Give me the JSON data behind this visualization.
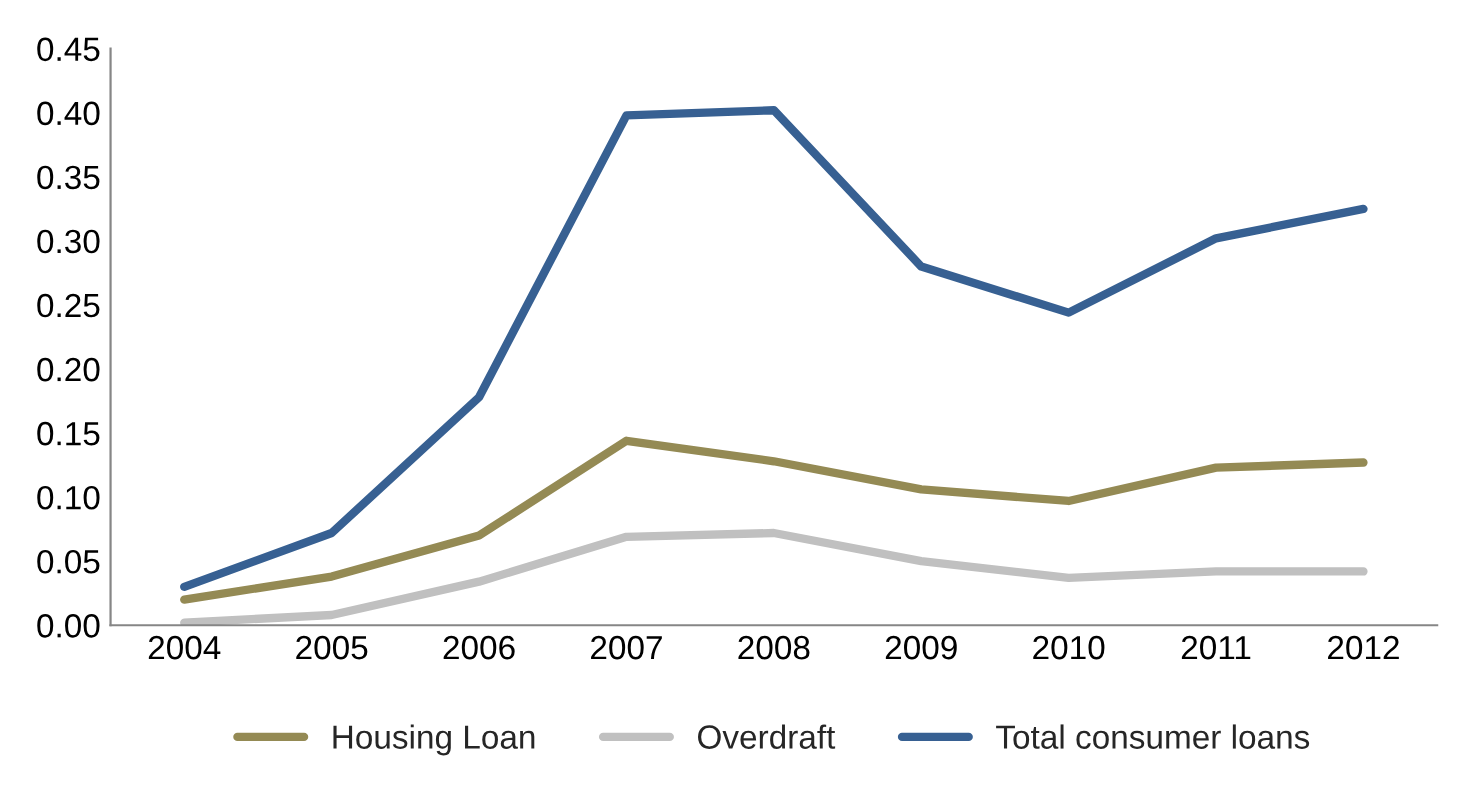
{
  "chart_data": {
    "type": "line",
    "categories": [
      "2004",
      "2005",
      "2006",
      "2007",
      "2008",
      "2009",
      "2010",
      "2011",
      "2012"
    ],
    "series": [
      {
        "name": "Housing Loan",
        "color": "#948a54",
        "values": [
          0.02,
          0.038,
          0.07,
          0.144,
          0.128,
          0.106,
          0.097,
          0.123,
          0.127
        ]
      },
      {
        "name": "Overdraft",
        "color": "#c0c0c0",
        "values": [
          0.002,
          0.008,
          0.034,
          0.069,
          0.072,
          0.05,
          0.037,
          0.042,
          0.042
        ]
      },
      {
        "name": "Total consumer loans",
        "color": "#376092",
        "values": [
          0.03,
          0.072,
          0.178,
          0.398,
          0.402,
          0.28,
          0.244,
          0.302,
          0.325
        ]
      }
    ],
    "ylim": [
      0,
      0.45
    ],
    "yticks": [
      {
        "value": 0,
        "label": "0.00"
      },
      {
        "value": 0.05,
        "label": "0.05"
      },
      {
        "value": 0.1,
        "label": "0.10"
      },
      {
        "value": 0.15,
        "label": "0.15"
      },
      {
        "value": 0.2,
        "label": "0.20"
      },
      {
        "value": 0.25,
        "label": "0.25"
      },
      {
        "value": 0.3,
        "label": "0.30"
      },
      {
        "value": 0.35,
        "label": "0.35"
      },
      {
        "value": 0.4,
        "label": "0.40"
      },
      {
        "value": 0.45,
        "label": "0.45"
      }
    ],
    "grid": false,
    "legend": "bottom",
    "marker": "none",
    "line_style": "solid"
  }
}
